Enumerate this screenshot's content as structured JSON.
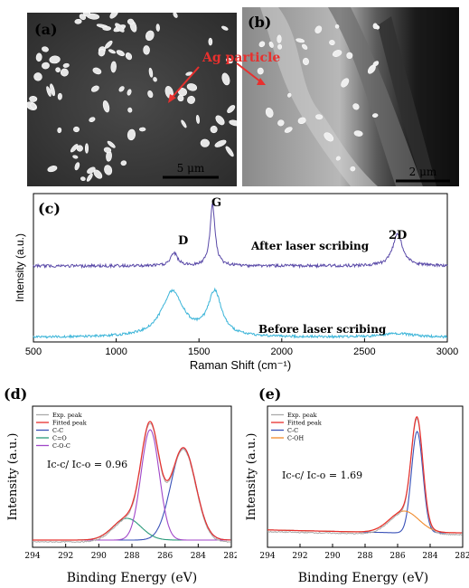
{
  "panel_a": {
    "letter": "(a)",
    "scale_bar": "5 μm"
  },
  "panel_b": {
    "letter": "(b)",
    "annotation": "Ag particle",
    "scale_bar": "2 μm"
  },
  "panel_c": {
    "letter": "(c)",
    "peak_D": "D",
    "peak_G": "G",
    "peak_2D": "2D",
    "trace_after": "After laser scribing",
    "trace_before": "Before laser scribing",
    "ylabel": "Intensity (a.u.)",
    "xlabel": "Raman Shift (cm⁻¹)",
    "xticks": [
      "500",
      "1000",
      "1500",
      "2000",
      "2500",
      "3000"
    ],
    "color_after": "#5a4aa8",
    "color_before": "#3ab4d8"
  },
  "panel_d": {
    "letter": "(d)",
    "ratio_text": "Ic-c/ Ic-o = 0.96",
    "ylabel": "Intensity (a.u.)",
    "xlabel": "Binding Energy (eV)",
    "xticks": [
      "294",
      "292",
      "290",
      "288",
      "286",
      "284",
      "282"
    ],
    "legend": [
      "Exp. peak",
      "Fitted peak",
      "C-C",
      "C=O",
      "C-O-C"
    ]
  },
  "panel_e": {
    "letter": "(e)",
    "ratio_text": "Ic-c/ Ic-o = 1.69",
    "ylabel": "Intensity (a.u.)",
    "xlabel": "Binding Energy (eV)",
    "xticks": [
      "294",
      "292",
      "290",
      "288",
      "286",
      "284",
      "282"
    ],
    "legend": [
      "Exp. peak",
      "Fitted peak",
      "C-C",
      "C-OH"
    ]
  },
  "chart_data": [
    {
      "type": "line",
      "panel": "c",
      "xlabel": "Raman Shift (cm⁻¹)",
      "ylabel": "Intensity (a.u.)",
      "xlim": [
        500,
        3000
      ],
      "series": [
        {
          "name": "After laser scribing",
          "peaks": [
            {
              "label": "D",
              "x": 1350
            },
            {
              "label": "G",
              "x": 1580
            },
            {
              "label": "2D",
              "x": 2700
            }
          ]
        },
        {
          "name": "Before laser scribing",
          "peaks": [
            {
              "x": 1350
            },
            {
              "x": 1590
            }
          ]
        }
      ]
    },
    {
      "type": "line",
      "panel": "d",
      "xlabel": "Binding Energy (eV)",
      "ylabel": "Intensity (a.u.)",
      "xlim": [
        294,
        282
      ],
      "series": [
        {
          "name": "Exp. peak",
          "color": "#aaaaaa"
        },
        {
          "name": "Fitted peak",
          "color": "#e8302e"
        },
        {
          "name": "C-C",
          "color": "#3a52b8",
          "center": 284.9
        },
        {
          "name": "C=O",
          "color": "#2a9a7a",
          "center": 288.3
        },
        {
          "name": "C-O-C",
          "color": "#a046c8",
          "center": 286.9
        }
      ]
    },
    {
      "type": "line",
      "panel": "e",
      "xlabel": "Binding Energy (eV)",
      "ylabel": "Intensity (a.u.)",
      "xlim": [
        294,
        282
      ],
      "series": [
        {
          "name": "Exp. peak",
          "color": "#aaaaaa"
        },
        {
          "name": "Fitted peak",
          "color": "#e8302e"
        },
        {
          "name": "C-C",
          "color": "#3a52b8",
          "center": 284.8
        },
        {
          "name": "C-OH",
          "color": "#f08a2a",
          "center": 285.6
        }
      ]
    }
  ]
}
